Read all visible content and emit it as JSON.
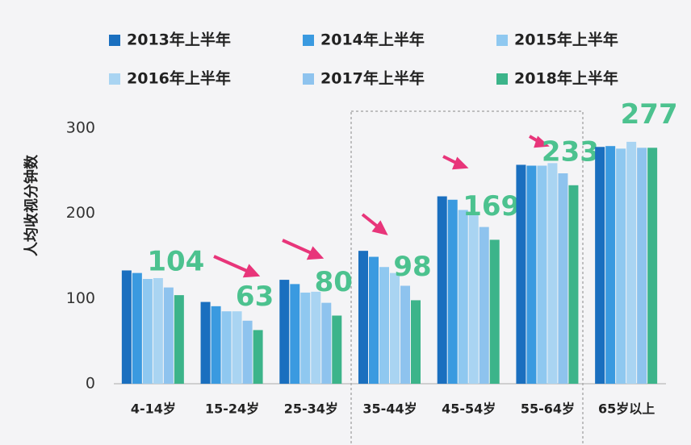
{
  "chart_data": {
    "type": "bar",
    "y_label": "人均收视分钟数",
    "categories": [
      "4-14岁",
      "15-24岁",
      "25-34岁",
      "35-44岁",
      "45-54岁",
      "55-64岁",
      "65岁以上"
    ],
    "series": [
      {
        "name": "2013年上半年",
        "color": "#1a6fbf",
        "values": [
          133,
          96,
          122,
          156,
          220,
          257,
          278
        ]
      },
      {
        "name": "2014年上半年",
        "color": "#3a9ae0",
        "values": [
          130,
          91,
          117,
          149,
          216,
          256,
          279
        ]
      },
      {
        "name": "2015年上半年",
        "color": "#8fc8f0",
        "values": [
          123,
          85,
          107,
          137,
          204,
          256,
          276
        ]
      },
      {
        "name": "2016年上半年",
        "color": "#a9d4f2",
        "values": [
          124,
          85,
          108,
          130,
          201,
          259,
          284
        ]
      },
      {
        "name": "2017年上半年",
        "color": "#8ec3ee",
        "values": [
          113,
          74,
          95,
          115,
          184,
          247,
          277
        ]
      },
      {
        "name": "2018年上半年",
        "color": "#3cb48a",
        "values": [
          104,
          63,
          80,
          98,
          169,
          233,
          277
        ]
      }
    ],
    "labeled_series": 5,
    "ylim": [
      0,
      300
    ],
    "yticks": [
      0,
      100,
      200,
      300
    ],
    "grid": false
  }
}
